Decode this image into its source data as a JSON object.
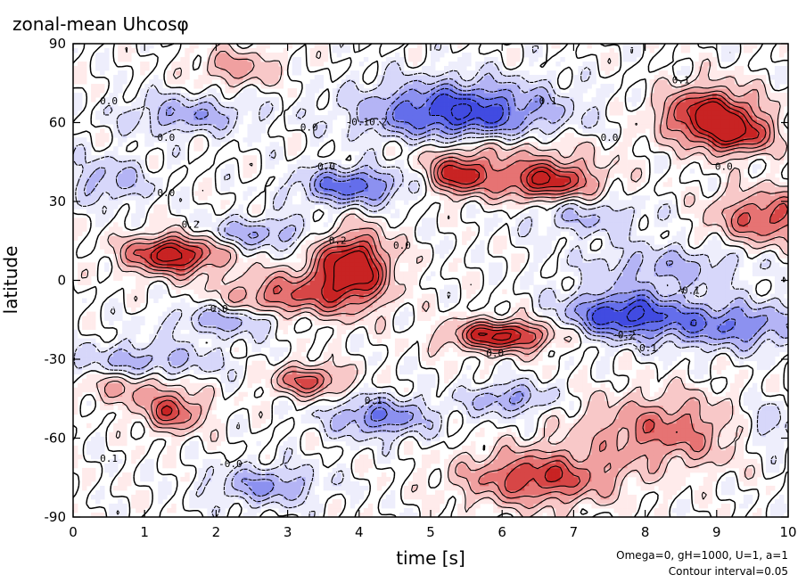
{
  "chart_data": {
    "type": "heatmap",
    "title": "zonal-mean Uhcosφ",
    "xlabel": "time [s]",
    "ylabel": "latitude",
    "xlim": [
      0,
      10
    ],
    "ylim": [
      -90,
      90
    ],
    "x_ticks": [
      "0",
      "1",
      "2",
      "3",
      "4",
      "5",
      "6",
      "7",
      "8",
      "9",
      "10"
    ],
    "y_ticks": [
      "-90",
      "-60",
      "-30",
      "0",
      "30",
      "60",
      "90"
    ],
    "contour_interval": 0.05,
    "colors": {
      "positive": "#d02020",
      "negative": "#2030e0",
      "zero": "#ffffff"
    },
    "contour_labels": [
      {
        "text": "0.1",
        "x": 8.5,
        "y": 76
      },
      {
        "text": "-0.1",
        "x": 6.6,
        "y": 68
      },
      {
        "text": "0.0",
        "x": 0.5,
        "y": 68
      },
      {
        "text": "-0.10.2",
        "x": 4.1,
        "y": 60
      },
      {
        "text": "0.0",
        "x": 3.3,
        "y": 58
      },
      {
        "text": "0.0",
        "x": 1.3,
        "y": 54
      },
      {
        "text": "0.0",
        "x": 7.5,
        "y": 54
      },
      {
        "text": "-0.0",
        "x": 3.5,
        "y": 43
      },
      {
        "text": "0.0",
        "x": 9.1,
        "y": 43
      },
      {
        "text": "0.0",
        "x": 1.3,
        "y": 33
      },
      {
        "text": "-0.2",
        "x": 1.6,
        "y": 21
      },
      {
        "text": "0.2",
        "x": 3.7,
        "y": 15
      },
      {
        "text": "0.0",
        "x": 4.6,
        "y": 13
      },
      {
        "text": "-0.1",
        "x": 8.6,
        "y": -4
      },
      {
        "text": "-0.0",
        "x": 2.0,
        "y": -11
      },
      {
        "text": "0.0",
        "x": 5.9,
        "y": -28
      },
      {
        "text": "-0.2",
        "x": 7.7,
        "y": -21
      },
      {
        "text": "-0.1",
        "x": 8.0,
        "y": -26
      },
      {
        "text": "0.1",
        "x": 4.2,
        "y": -46
      },
      {
        "text": "0.1",
        "x": 0.5,
        "y": -68
      },
      {
        "text": "-0.0",
        "x": 2.2,
        "y": -70
      }
    ],
    "blobs": [
      {
        "t": 8.9,
        "lat": 63,
        "st": 0.45,
        "sl": 7,
        "a": 0.34
      },
      {
        "t": 9.3,
        "lat": 55,
        "st": 0.35,
        "sl": 5,
        "a": 0.22
      },
      {
        "t": 5.4,
        "lat": 40,
        "st": 0.3,
        "sl": 5,
        "a": 0.28
      },
      {
        "t": 6.6,
        "lat": 38,
        "st": 0.5,
        "sl": 5,
        "a": 0.3
      },
      {
        "t": 9.7,
        "lat": 24,
        "st": 0.5,
        "sl": 7,
        "a": 0.22
      },
      {
        "t": 1.4,
        "lat": 10,
        "st": 0.45,
        "sl": 5,
        "a": 0.34
      },
      {
        "t": 3.9,
        "lat": 5,
        "st": 0.35,
        "sl": 9,
        "a": 0.38
      },
      {
        "t": 3.0,
        "lat": -6,
        "st": 0.6,
        "sl": 6,
        "a": 0.2
      },
      {
        "t": 6.0,
        "lat": -21,
        "st": 0.5,
        "sl": 4,
        "a": 0.32
      },
      {
        "t": 1.4,
        "lat": -50,
        "st": 0.3,
        "sl": 5,
        "a": 0.22
      },
      {
        "t": 3.3,
        "lat": -38,
        "st": 0.35,
        "sl": 4,
        "a": 0.22
      },
      {
        "t": 6.5,
        "lat": -75,
        "st": 0.7,
        "sl": 7,
        "a": 0.25
      },
      {
        "t": 8.3,
        "lat": -57,
        "st": 0.8,
        "sl": 9,
        "a": 0.18
      },
      {
        "t": 2.3,
        "lat": 81,
        "st": 0.4,
        "sl": 5,
        "a": 0.12
      },
      {
        "t": 5.9,
        "lat": 50,
        "st": 0.9,
        "sl": 5,
        "a": 0.1
      },
      {
        "t": 0.8,
        "lat": -40,
        "st": 0.5,
        "sl": 5,
        "a": 0.12
      },
      {
        "t": 5.4,
        "lat": 64,
        "st": 0.9,
        "sl": 8,
        "a": -0.3
      },
      {
        "t": 3.9,
        "lat": 36,
        "st": 0.5,
        "sl": 5,
        "a": -0.24
      },
      {
        "t": 1.6,
        "lat": 63,
        "st": 0.6,
        "sl": 5,
        "a": -0.14
      },
      {
        "t": 7.7,
        "lat": -13,
        "st": 0.55,
        "sl": 6,
        "a": -0.3
      },
      {
        "t": 9.2,
        "lat": -17,
        "st": 0.7,
        "sl": 6,
        "a": -0.2
      },
      {
        "t": 4.3,
        "lat": -52,
        "st": 0.5,
        "sl": 5,
        "a": -0.2
      },
      {
        "t": 2.7,
        "lat": -78,
        "st": 0.5,
        "sl": 5,
        "a": -0.16
      },
      {
        "t": 2.2,
        "lat": -15,
        "st": 0.6,
        "sl": 4,
        "a": -0.14
      },
      {
        "t": 6.1,
        "lat": -45,
        "st": 0.4,
        "sl": 4,
        "a": -0.16
      },
      {
        "t": 1.0,
        "lat": -31,
        "st": 0.7,
        "sl": 5,
        "a": -0.14
      },
      {
        "t": 8.3,
        "lat": 5,
        "st": 0.8,
        "sl": 6,
        "a": -0.12
      },
      {
        "t": 2.6,
        "lat": 18,
        "st": 0.6,
        "sl": 4,
        "a": -0.14
      },
      {
        "t": 0.5,
        "lat": 38,
        "st": 0.4,
        "sl": 6,
        "a": -0.12
      },
      {
        "t": 9.7,
        "lat": -55,
        "st": 0.4,
        "sl": 7,
        "a": -0.1
      },
      {
        "t": 7.2,
        "lat": 24,
        "st": 0.6,
        "sl": 5,
        "a": -0.1
      }
    ]
  },
  "footer": {
    "params": "Omega=0, gH=1000, U=1, a=1",
    "interval": "Contour interval=0.05"
  }
}
